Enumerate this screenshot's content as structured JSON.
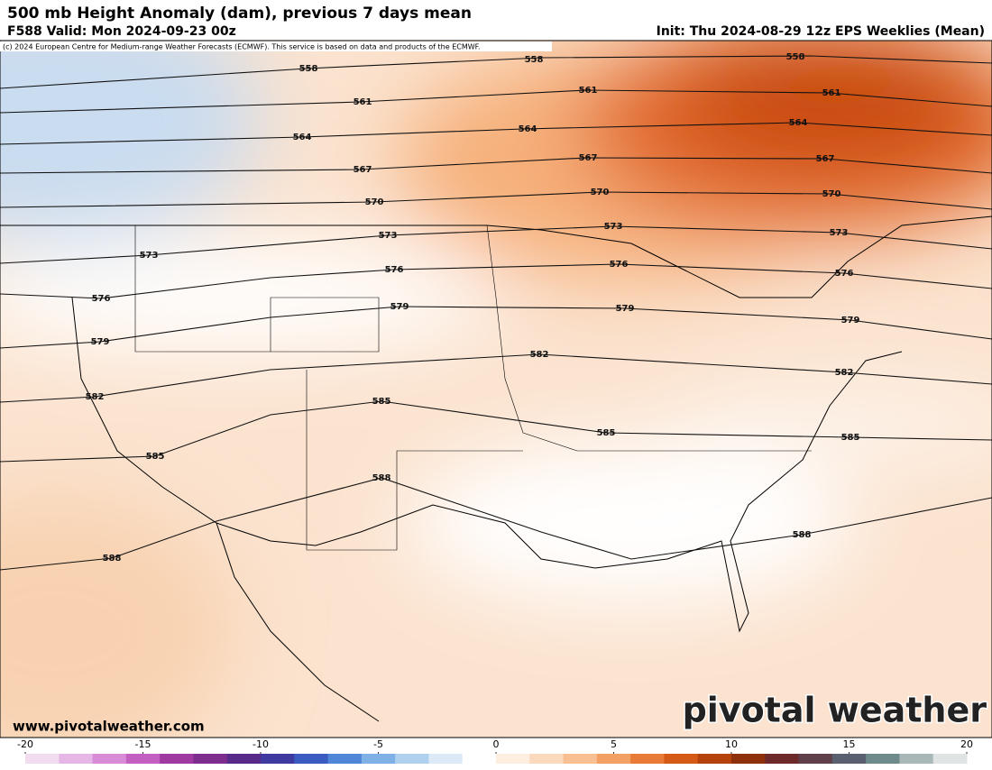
{
  "header": {
    "title": "500 mb Height Anomaly (dam), previous 7 days mean",
    "valid": "F588 Valid: Mon 2024-09-23 00z",
    "init": "Init: Thu 2024-08-29 12z EPS Weeklies (Mean)",
    "credit": "(c) 2024 European Centre for Medium-range Weather Forecasts (ECMWF). This service is based on data and products of the ECMWF."
  },
  "contour_levels": [
    "558",
    "561",
    "564",
    "567",
    "570",
    "573",
    "576",
    "579",
    "582",
    "585",
    "588"
  ],
  "colorbar": {
    "range": [
      -20,
      20
    ],
    "ticks": [
      -20,
      -15,
      -10,
      -5,
      0,
      5,
      10,
      15,
      20
    ]
  },
  "footer": {
    "website": "www.pivotalweather.com",
    "logo": "pivotal weather"
  }
}
